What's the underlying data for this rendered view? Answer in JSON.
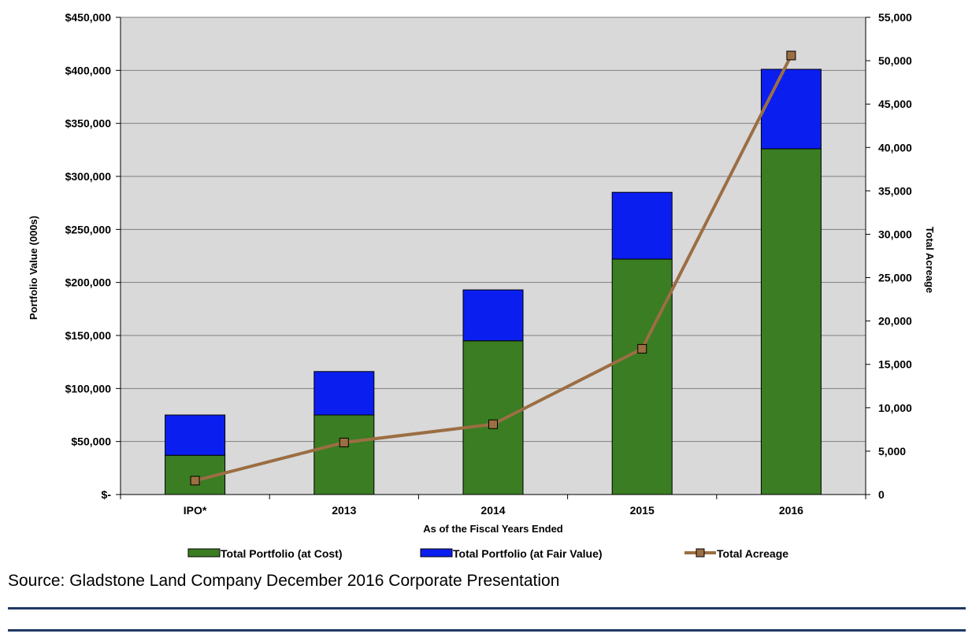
{
  "chart_data": {
    "type": "bar",
    "stacked": true,
    "categories": [
      "IPO*",
      "2013",
      "2014",
      "2015",
      "2016"
    ],
    "series": [
      {
        "name": "Total Portfolio (at Cost)",
        "type": "bar",
        "axis": "left",
        "values": [
          37000,
          75000,
          145000,
          222000,
          326000
        ]
      },
      {
        "name": "Total Portfolio (at Fair Value)",
        "type": "bar",
        "axis": "left",
        "values": [
          38000,
          41000,
          48000,
          63000,
          75000
        ]
      },
      {
        "name": "Total Acreage",
        "type": "line",
        "axis": "right",
        "values": [
          1600,
          6000,
          8100,
          16800,
          50600
        ]
      }
    ],
    "xlabel": "As of the Fiscal Years Ended",
    "ylabel": "Portfolio Value (000s)",
    "y2label": "Total Acreage",
    "ylim": [
      0,
      450000
    ],
    "y2lim": [
      0,
      55000
    ],
    "yticks": [
      "$-",
      "$50,000",
      "$100,000",
      "$150,000",
      "$200,000",
      "$250,000",
      "$300,000",
      "$350,000",
      "$400,000",
      "$450,000"
    ],
    "y2ticks": [
      "0",
      "5,000",
      "10,000",
      "15,000",
      "20,000",
      "25,000",
      "30,000",
      "35,000",
      "40,000",
      "45,000",
      "50,000",
      "55,000"
    ],
    "grid": true,
    "legend": "bottom",
    "colors": {
      "cost": "#3a7d22",
      "fair": "#0b1ef0",
      "acreage": "#9b6e43",
      "plot_bg": "#d9d9d9"
    }
  },
  "source_text": "Source: Gladstone Land Company December 2016 Corporate Presentation"
}
